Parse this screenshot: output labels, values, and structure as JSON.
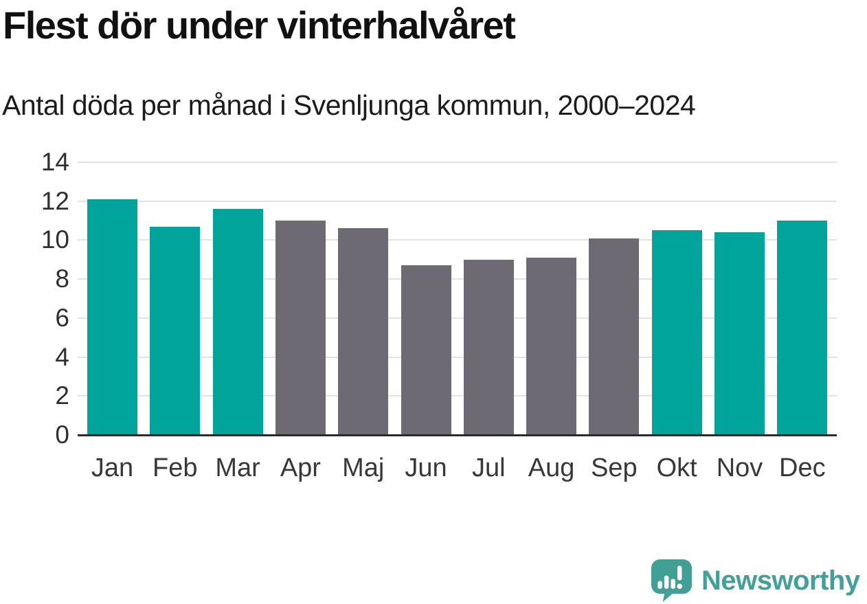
{
  "header": {
    "title": "Flest dör under vinterhalvåret",
    "subtitle": "Antal döda per månad i Svenljunga kommun, 2000–2024"
  },
  "chart_data": {
    "type": "bar",
    "title": "Flest dör under vinterhalvåret",
    "subtitle": "Antal döda per månad i Svenljunga kommun, 2000–2024",
    "categories": [
      "Jan",
      "Feb",
      "Mar",
      "Apr",
      "Maj",
      "Jun",
      "Jul",
      "Aug",
      "Sep",
      "Okt",
      "Nov",
      "Dec"
    ],
    "values": [
      12.1,
      10.7,
      11.6,
      11.0,
      10.6,
      8.7,
      9.0,
      9.1,
      10.1,
      10.5,
      10.4,
      11.0
    ],
    "bar_color_keys": [
      "winter",
      "winter",
      "winter",
      "summer",
      "summer",
      "summer",
      "summer",
      "summer",
      "summer",
      "winter",
      "winter",
      "winter"
    ],
    "palette": {
      "winter": "#00a49b",
      "summer": "#6d6a73"
    },
    "xlabel": "",
    "ylabel": "",
    "ylim": [
      0,
      14
    ],
    "yticks": [
      0,
      2,
      4,
      6,
      8,
      10,
      12,
      14
    ],
    "grid": true,
    "gridline_color": "#e3e3e3",
    "axis_line_color": "#2b2b2b",
    "legend_position": "none"
  },
  "footer": {
    "brand": "Newsworthy",
    "brand_color": "#41a098",
    "logo_icon": "speech-bubble-bar-chart-icon"
  }
}
